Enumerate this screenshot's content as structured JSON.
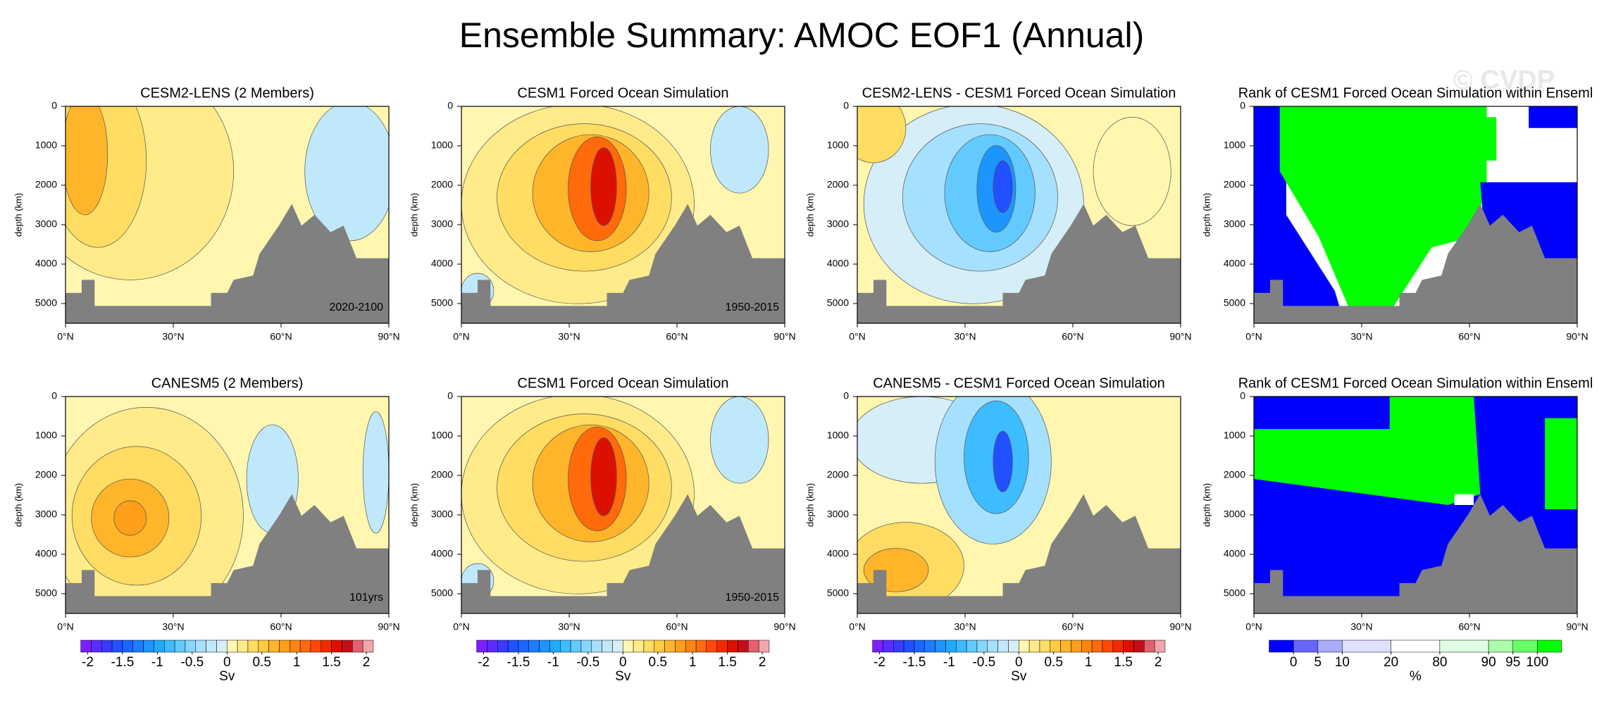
{
  "title": "Ensemble Summary: AMOC EOF1 (Annual)",
  "watermark": "© CVDP",
  "chart_data": [
    {
      "type": "contour",
      "title": "CESM2-LENS (2 Members)",
      "annotation": "2020-2100",
      "ylabel": "depth (km)",
      "field": "lens",
      "xlim": [
        0,
        90
      ],
      "ylim": [
        0,
        5500
      ],
      "y_inverted": true,
      "xticks": [
        {
          "value": 0,
          "label": "0°N"
        },
        {
          "value": 30,
          "label": "30°N"
        },
        {
          "value": 60,
          "label": "60°N"
        },
        {
          "value": 90,
          "label": "90°N"
        }
      ],
      "yticks": [
        0,
        1000,
        2000,
        3000,
        4000,
        5000
      ]
    },
    {
      "type": "contour",
      "title": "CESM1 Forced Ocean Simulation",
      "annotation": "1950-2015",
      "ylabel": "depth (km)",
      "field": "obs",
      "xlim": [
        0,
        90
      ],
      "ylim": [
        0,
        5500
      ],
      "y_inverted": true,
      "xticks": [
        {
          "value": 0,
          "label": "0°N"
        },
        {
          "value": 30,
          "label": "30°N"
        },
        {
          "value": 60,
          "label": "60°N"
        },
        {
          "value": 90,
          "label": "90°N"
        }
      ],
      "yticks": [
        0,
        1000,
        2000,
        3000,
        4000,
        5000
      ]
    },
    {
      "type": "contour",
      "title": "CESM2-LENS - CESM1 Forced Ocean Simulation",
      "ylabel": "depth (km)",
      "field": "diff1",
      "xlim": [
        0,
        90
      ],
      "ylim": [
        0,
        5500
      ],
      "y_inverted": true,
      "xticks": [
        {
          "value": 0,
          "label": "0°N"
        },
        {
          "value": 30,
          "label": "30°N"
        },
        {
          "value": 60,
          "label": "60°N"
        },
        {
          "value": 90,
          "label": "90°N"
        }
      ],
      "yticks": [
        0,
        1000,
        2000,
        3000,
        4000,
        5000
      ]
    },
    {
      "type": "contour",
      "title": "Rank of CESM1 Forced Ocean Simulation within Enseml",
      "ylabel": "depth (km)",
      "field": "rank1",
      "xlim": [
        0,
        90
      ],
      "ylim": [
        0,
        5500
      ],
      "y_inverted": true,
      "xticks": [
        {
          "value": 0,
          "label": "0°N"
        },
        {
          "value": 30,
          "label": "30°N"
        },
        {
          "value": 60,
          "label": "60°N"
        },
        {
          "value": 90,
          "label": "90°N"
        }
      ],
      "yticks": [
        0,
        1000,
        2000,
        3000,
        4000,
        5000
      ]
    },
    {
      "type": "contour",
      "title": "CANESM5 (2 Members)",
      "annotation": "101yrs",
      "ylabel": "depth (km)",
      "field": "canesm",
      "xlim": [
        0,
        90
      ],
      "ylim": [
        0,
        5500
      ],
      "y_inverted": true,
      "xticks": [
        {
          "value": 0,
          "label": "0°N"
        },
        {
          "value": 30,
          "label": "30°N"
        },
        {
          "value": 60,
          "label": "60°N"
        },
        {
          "value": 90,
          "label": "90°N"
        }
      ],
      "yticks": [
        0,
        1000,
        2000,
        3000,
        4000,
        5000
      ]
    },
    {
      "type": "contour",
      "title": "CESM1 Forced Ocean Simulation",
      "annotation": "1950-2015",
      "ylabel": "depth (km)",
      "field": "obs",
      "xlim": [
        0,
        90
      ],
      "ylim": [
        0,
        5500
      ],
      "y_inverted": true,
      "xticks": [
        {
          "value": 0,
          "label": "0°N"
        },
        {
          "value": 30,
          "label": "30°N"
        },
        {
          "value": 60,
          "label": "60°N"
        },
        {
          "value": 90,
          "label": "90°N"
        }
      ],
      "yticks": [
        0,
        1000,
        2000,
        3000,
        4000,
        5000
      ]
    },
    {
      "type": "contour",
      "title": "CANESM5 - CESM1 Forced Ocean Simulation",
      "ylabel": "depth (km)",
      "field": "diff2",
      "xlim": [
        0,
        90
      ],
      "ylim": [
        0,
        5500
      ],
      "y_inverted": true,
      "xticks": [
        {
          "value": 0,
          "label": "0°N"
        },
        {
          "value": 30,
          "label": "30°N"
        },
        {
          "value": 60,
          "label": "60°N"
        },
        {
          "value": 90,
          "label": "90°N"
        }
      ],
      "yticks": [
        0,
        1000,
        2000,
        3000,
        4000,
        5000
      ]
    },
    {
      "type": "contour",
      "title": "Rank of CESM1 Forced Ocean Simulation within Enseml",
      "ylabel": "depth (km)",
      "field": "rank2",
      "xlim": [
        0,
        90
      ],
      "ylim": [
        0,
        5500
      ],
      "y_inverted": true,
      "xticks": [
        {
          "value": 0,
          "label": "0°N"
        },
        {
          "value": 30,
          "label": "30°N"
        },
        {
          "value": 60,
          "label": "60°N"
        },
        {
          "value": 90,
          "label": "90°N"
        }
      ],
      "yticks": [
        0,
        1000,
        2000,
        3000,
        4000,
        5000
      ]
    }
  ],
  "colorbars": [
    {
      "type": "linear",
      "label": "Sv",
      "lim": [
        -2.1,
        2.1
      ],
      "ticks": [
        -2,
        -1.5,
        -1,
        -0.5,
        0,
        0.5,
        1,
        1.5,
        2
      ],
      "colors": [
        "#7a1fff",
        "#5a2cff",
        "#3a3aff",
        "#2050ff",
        "#1a66ff",
        "#1c7eff",
        "#1d95ff",
        "#20aaff",
        "#3dbcff",
        "#62caff",
        "#86d6ff",
        "#a6e0ff",
        "#c0e8fb",
        "#d6eef8",
        "#fff6b0",
        "#ffeb8a",
        "#ffdc62",
        "#ffca40",
        "#ffb52a",
        "#ff9e18",
        "#ff8510",
        "#ff6a0a",
        "#ff4a05",
        "#f22a00",
        "#dc1000",
        "#c40f1a",
        "#e4606e",
        "#f3a5ac"
      ]
    },
    {
      "type": "linear",
      "label": "Sv",
      "lim": [
        -2.1,
        2.1
      ],
      "ticks": [
        -2,
        -1.5,
        -1,
        -0.5,
        0,
        0.5,
        1,
        1.5,
        2
      ],
      "colors": [
        "#7a1fff",
        "#5a2cff",
        "#3a3aff",
        "#2050ff",
        "#1a66ff",
        "#1c7eff",
        "#1d95ff",
        "#20aaff",
        "#3dbcff",
        "#62caff",
        "#86d6ff",
        "#a6e0ff",
        "#c0e8fb",
        "#d6eef8",
        "#fff6b0",
        "#ffeb8a",
        "#ffdc62",
        "#ffca40",
        "#ffb52a",
        "#ff9e18",
        "#ff8510",
        "#ff6a0a",
        "#ff4a05",
        "#f22a00",
        "#dc1000",
        "#c40f1a",
        "#e4606e",
        "#f3a5ac"
      ]
    },
    {
      "type": "linear",
      "label": "Sv",
      "lim": [
        -2.1,
        2.1
      ],
      "ticks": [
        -2,
        -1.5,
        -1,
        -0.5,
        0,
        0.5,
        1,
        1.5,
        2
      ],
      "colors": [
        "#7a1fff",
        "#5a2cff",
        "#3a3aff",
        "#2050ff",
        "#1a66ff",
        "#1c7eff",
        "#1d95ff",
        "#20aaff",
        "#3dbcff",
        "#62caff",
        "#86d6ff",
        "#a6e0ff",
        "#c0e8fb",
        "#d6eef8",
        "#fff6b0",
        "#ffeb8a",
        "#ffdc62",
        "#ffca40",
        "#ffb52a",
        "#ff9e18",
        "#ff8510",
        "#ff6a0a",
        "#ff4a05",
        "#f22a00",
        "#dc1000",
        "#c40f1a",
        "#e4606e",
        "#f3a5ac"
      ]
    },
    {
      "type": "rank",
      "label": "%",
      "ticks": [
        0,
        5,
        10,
        20,
        80,
        90,
        95,
        100
      ],
      "colors": [
        "#0000ff",
        "#6666ff",
        "#aaaaff",
        "#e0e0ff",
        "#ffffff",
        "#e0ffe0",
        "#aaffaa",
        "#66ff66",
        "#00ff00"
      ]
    }
  ]
}
